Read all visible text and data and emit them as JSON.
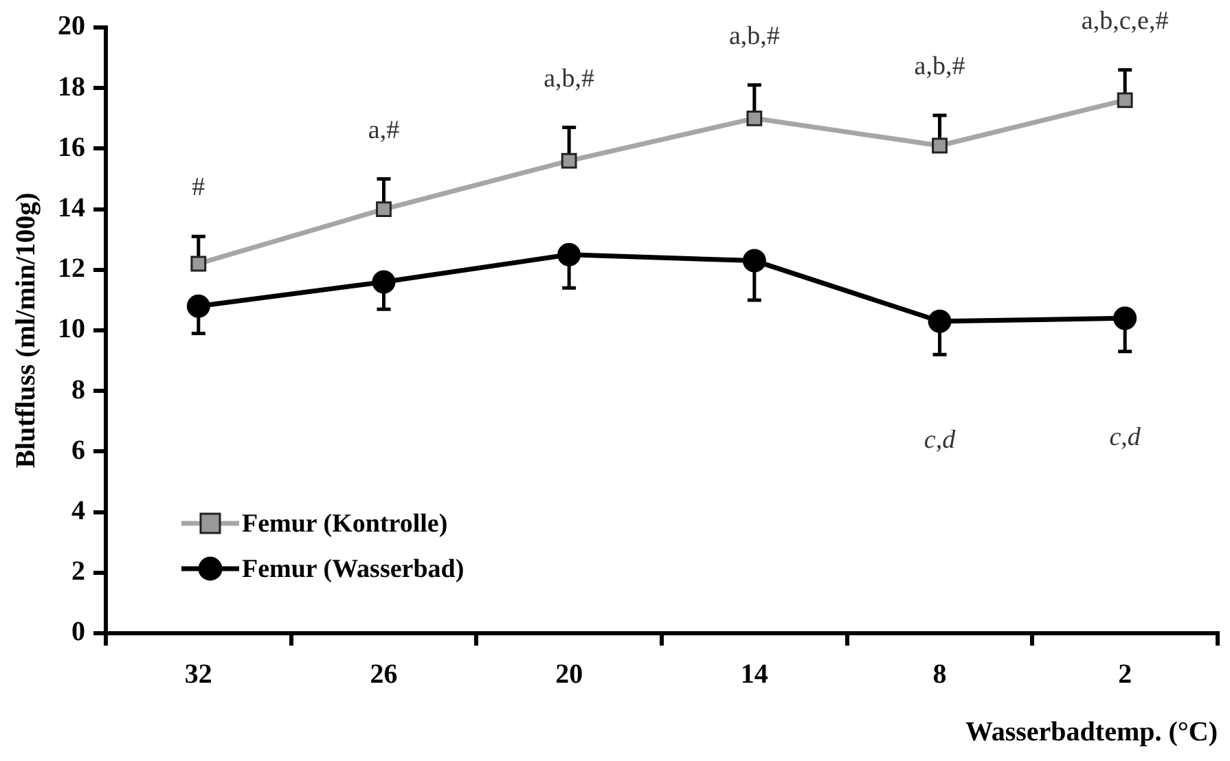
{
  "chart_data": {
    "type": "line",
    "xlabel": "Wasserbadtemp. (°C)",
    "ylabel": "Blutfluss (ml/min/100g)",
    "categories": [
      "32",
      "26",
      "20",
      "14",
      "8",
      "2"
    ],
    "ylim": [
      0,
      20
    ],
    "yticks": [
      0,
      2,
      4,
      6,
      8,
      10,
      12,
      14,
      16,
      18,
      20
    ],
    "grid": false,
    "legend": "bottom left",
    "line_style": "solid",
    "series": [
      {
        "name": "Femur (Kontrolle)",
        "color": "#a6a6a6",
        "marker": "square",
        "values": [
          12.2,
          14.0,
          15.6,
          17.0,
          16.1,
          17.6
        ],
        "errors": [
          [
            12.2,
            13.1
          ],
          [
            14.0,
            15.0
          ],
          [
            15.6,
            16.7
          ],
          [
            17.0,
            18.1
          ],
          [
            16.1,
            17.1
          ],
          [
            17.6,
            18.6
          ]
        ]
      },
      {
        "name": "Femur (Wasserbad)",
        "color": "#000000",
        "marker": "circle",
        "values": [
          10.8,
          11.6,
          12.5,
          12.3,
          10.3,
          10.4
        ],
        "errors": [
          [
            9.9,
            10.8
          ],
          [
            10.7,
            11.6
          ],
          [
            11.4,
            12.5
          ],
          [
            11.0,
            12.3
          ],
          [
            9.2,
            10.3
          ],
          [
            9.3,
            10.4
          ]
        ]
      }
    ],
    "annotations": [
      {
        "text": "#",
        "x": "32",
        "y": 13.1
      },
      {
        "text": "a,#",
        "x": "26",
        "y": 15.0
      },
      {
        "text": "a,b,#",
        "x": "20",
        "y": 16.7
      },
      {
        "text": "a,b,#",
        "x": "14",
        "y": 18.1
      },
      {
        "text": "a,b,#",
        "x": "8",
        "y": 17.1
      },
      {
        "text": "a,b,c,e,#",
        "x": "2",
        "y": 18.6
      },
      {
        "text": "c,d",
        "x": "8",
        "y": 9.2
      },
      {
        "text": "c,d",
        "x": "2",
        "y": 9.3
      }
    ]
  }
}
